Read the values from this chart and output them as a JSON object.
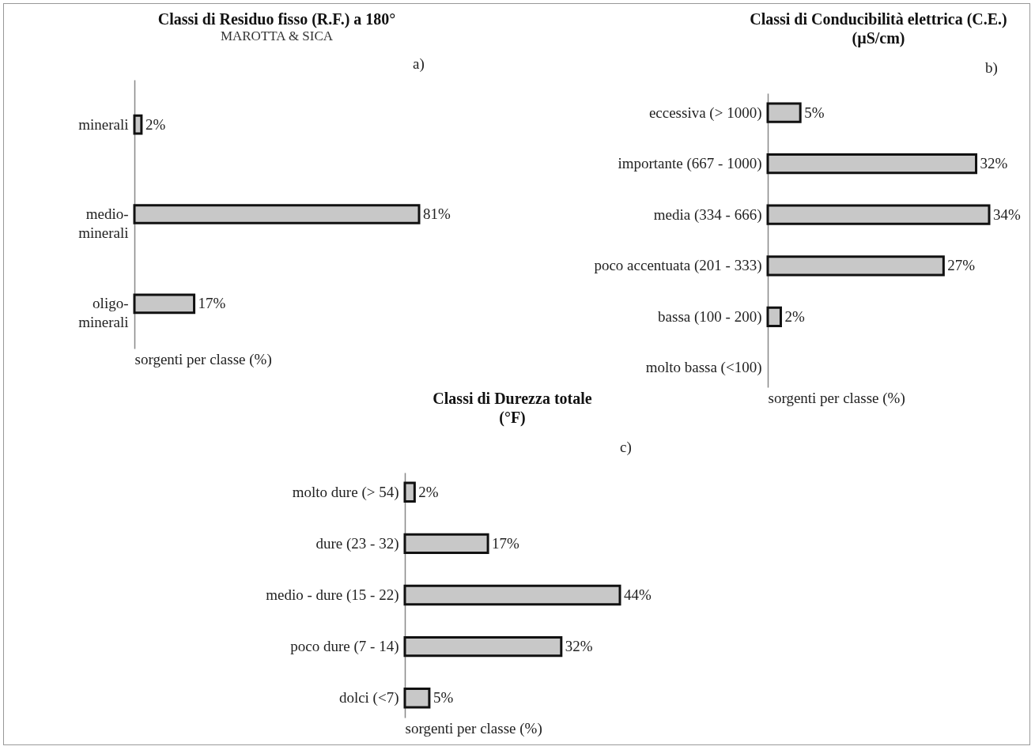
{
  "chart_data": [
    {
      "type": "bar",
      "orientation": "horizontal",
      "title": "Classi di Residuo fisso (R.F.) a 180°",
      "subtitle": "MAROTTA & SICA",
      "annotations": [
        "a)"
      ],
      "xlabel": "sorgenti per classe (%)",
      "categories": [
        "minerali",
        "medio-minerali",
        "oligo-minerali"
      ],
      "values": [
        2,
        81,
        17
      ],
      "value_labels": [
        "2%",
        "81%",
        "17%"
      ],
      "color": "#c8c8c8",
      "tick_labels": "y"
    },
    {
      "type": "bar",
      "orientation": "horizontal",
      "title": "Classi di Conducibilità elettrica (C.E.)\n(µS/cm)",
      "annotations": [
        "b)"
      ],
      "xlabel": "sorgenti per classe (%)",
      "categories": [
        "eccessiva (> 1000)",
        "importante (667 - 1000)",
        "media (334 - 666)",
        "poco accentuata (201 - 333)",
        "bassa (100 - 200)",
        "molto bassa (<100)"
      ],
      "values": [
        5,
        32,
        34,
        27,
        2,
        null
      ],
      "value_labels": [
        "5%",
        "32%",
        "34%",
        "27%",
        "2%",
        null
      ],
      "color": "#c8c8c8",
      "tick_labels": "y"
    },
    {
      "type": "bar",
      "orientation": "horizontal",
      "title": "Classi di Durezza totale\n(°F)",
      "annotations": [
        "c)"
      ],
      "xlabel": "sorgenti per classe (%)",
      "categories": [
        "molto dure (> 54)",
        "dure (23 - 32)",
        "medio - dure (15 - 22)",
        "poco dure (7 - 14)",
        "dolci (<7)"
      ],
      "values": [
        2,
        17,
        44,
        32,
        5
      ],
      "value_labels": [
        "2%",
        "17%",
        "44%",
        "32%",
        "5%"
      ],
      "color": "#c8c8c8",
      "tick_labels": "y"
    }
  ]
}
